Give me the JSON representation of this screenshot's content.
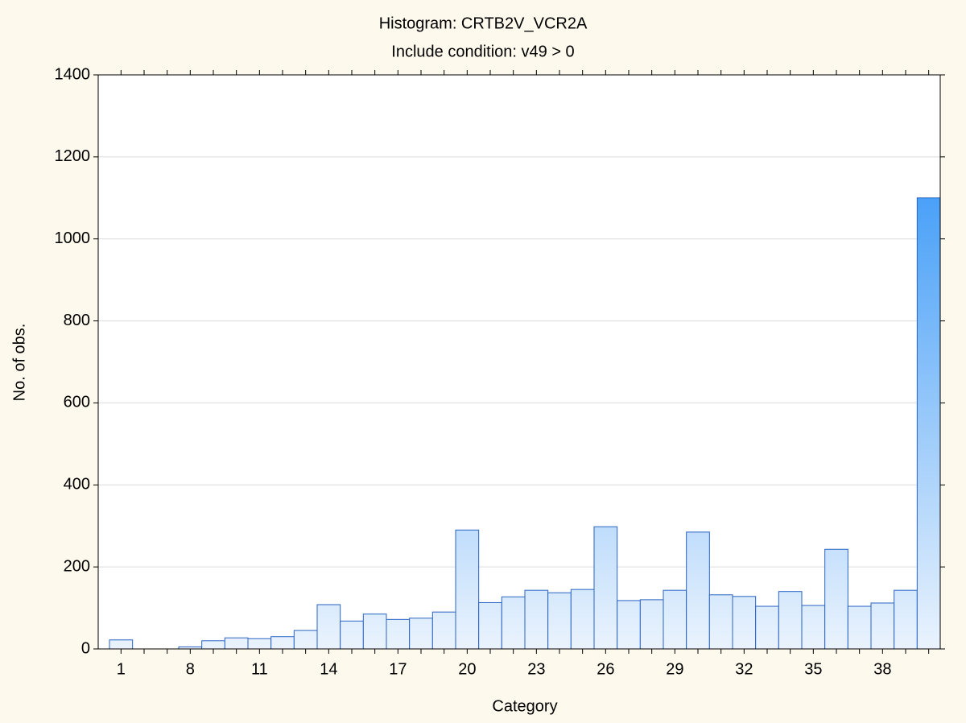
{
  "chart_data": {
    "type": "bar",
    "title": "Histogram: CRTB2V_VCR2A",
    "subtitle": "Include condition: v49 > 0",
    "x_label": "Category",
    "y_label": "No. of obs.",
    "categories": [
      "1",
      null,
      null,
      "8",
      null,
      null,
      "11",
      null,
      null,
      "14",
      null,
      null,
      "17",
      null,
      null,
      "20",
      null,
      null,
      "23",
      null,
      null,
      "26",
      null,
      null,
      "29",
      null,
      null,
      "32",
      null,
      null,
      "35",
      null,
      null,
      "38",
      null,
      null
    ],
    "values": [
      22,
      0,
      0,
      5,
      20,
      27,
      25,
      30,
      45,
      108,
      68,
      85,
      72,
      75,
      90,
      290,
      113,
      127,
      143,
      137,
      145,
      298,
      118,
      120,
      143,
      285,
      132,
      128,
      104,
      140,
      106,
      243,
      104,
      112,
      143,
      1100
    ],
    "color": "#3d9af7",
    "ylim": [
      0,
      1400
    ],
    "yticks": [
      0,
      200,
      400,
      600,
      800,
      1000,
      1200,
      1400
    ],
    "grid": true
  }
}
